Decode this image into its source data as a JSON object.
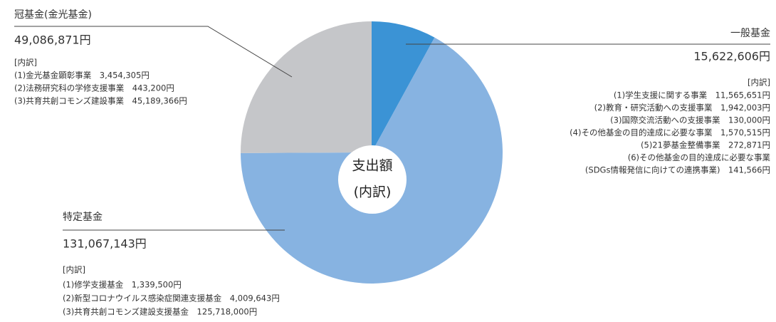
{
  "chart_data": {
    "type": "pie",
    "center_label": [
      "支出額",
      "(内訳)"
    ],
    "breakdown_heading": "[内訳]",
    "categories": [
      "一般基金",
      "特定基金",
      "冠基金(金光基金)"
    ],
    "values": [
      15622606,
      131067143,
      49086871
    ],
    "value_labels": [
      "15,622,606円",
      "131,067,143円",
      "49,086,871円"
    ],
    "colors": [
      "#3b93d5",
      "#87b3e1",
      "#c5c6c9"
    ],
    "breakdowns": [
      [
        "(1)学生支援に関する事業　11,565,651円",
        "(2)教育・研究活動への支援事業　1,942,003円",
        "(3)国際交流活動への支援事業　130,000円",
        "(4)その他基金の目的達成に必要な事業　1,570,515円",
        "(5)21夢基金整備事業　272,871円",
        "(6)その他基金の目的達成に必要な事業",
        "(SDGs情報発信に向けての連携事業)　141,566円"
      ],
      [
        "(1)修学支援基金　1,339,500円",
        "(2)新型コロナウイルス感染症関連支援基金　4,009,643円",
        "(3)共育共創コモンズ建設支援基金　125,718,000円"
      ],
      [
        "(1)金光基金顕彰事業　3,454,305円",
        "(2)法務研究科の学修支援事業　443,200円",
        "(3)共育共創コモンズ建設事業　45,189,366円"
      ]
    ]
  }
}
